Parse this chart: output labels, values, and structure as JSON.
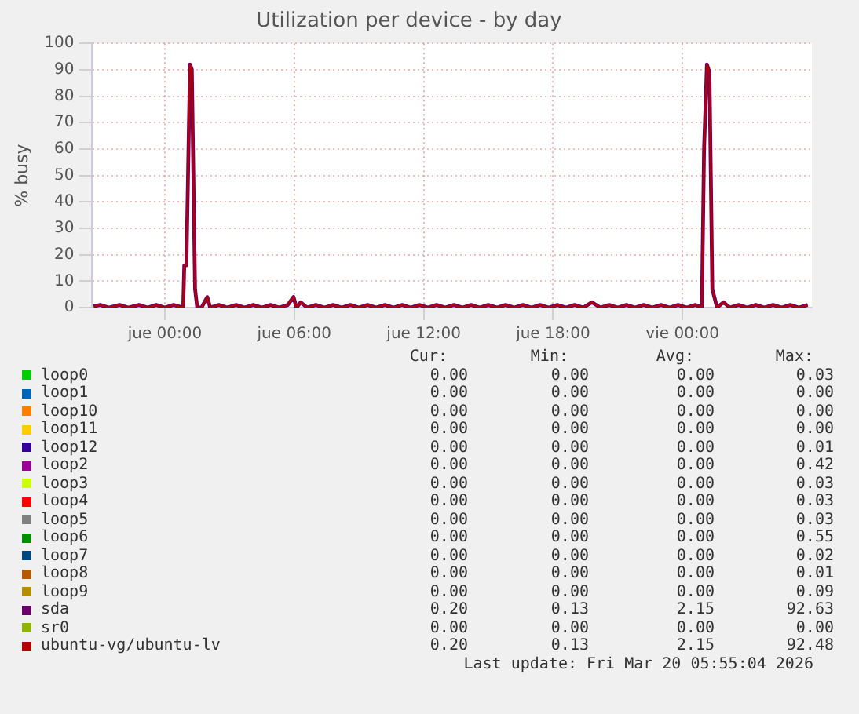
{
  "chart_data": {
    "type": "line",
    "title": "Utilization per device - by day",
    "ylabel": "% busy",
    "x": [
      "2026-03-18T20:42",
      "2026-03-18T21:00",
      "2026-03-18T21:24",
      "2026-03-18T21:54",
      "2026-03-18T22:18",
      "2026-03-18T22:48",
      "2026-03-18T23:12",
      "2026-03-18T23:36",
      "2026-03-19T00:00",
      "2026-03-19T00:24",
      "2026-03-19T00:51",
      "2026-03-19T00:54",
      "2026-03-19T01:00",
      "2026-03-19T01:10",
      "2026-03-19T01:15",
      "2026-03-19T01:24",
      "2026-03-19T01:30",
      "2026-03-19T01:42",
      "2026-03-19T01:58",
      "2026-03-19T02:06",
      "2026-03-19T02:30",
      "2026-03-19T02:54",
      "2026-03-19T03:18",
      "2026-03-19T03:42",
      "2026-03-19T04:06",
      "2026-03-19T04:30",
      "2026-03-19T04:54",
      "2026-03-19T05:18",
      "2026-03-19T05:42",
      "2026-03-19T05:58",
      "2026-03-19T06:06",
      "2026-03-19T06:18",
      "2026-03-19T06:36",
      "2026-03-19T07:00",
      "2026-03-19T07:24",
      "2026-03-19T07:48",
      "2026-03-19T08:12",
      "2026-03-19T08:36",
      "2026-03-19T09:00",
      "2026-03-19T09:24",
      "2026-03-19T09:48",
      "2026-03-19T10:12",
      "2026-03-19T10:36",
      "2026-03-19T11:00",
      "2026-03-19T11:24",
      "2026-03-19T11:48",
      "2026-03-19T12:12",
      "2026-03-19T12:36",
      "2026-03-19T13:00",
      "2026-03-19T13:24",
      "2026-03-19T13:48",
      "2026-03-19T14:12",
      "2026-03-19T14:36",
      "2026-03-19T15:00",
      "2026-03-19T15:24",
      "2026-03-19T15:48",
      "2026-03-19T16:12",
      "2026-03-19T16:36",
      "2026-03-19T17:00",
      "2026-03-19T17:24",
      "2026-03-19T17:48",
      "2026-03-19T18:12",
      "2026-03-19T18:36",
      "2026-03-19T19:00",
      "2026-03-19T19:24",
      "2026-03-19T19:48",
      "2026-03-19T20:12",
      "2026-03-19T20:36",
      "2026-03-19T21:00",
      "2026-03-19T21:24",
      "2026-03-19T21:48",
      "2026-03-19T22:12",
      "2026-03-19T22:36",
      "2026-03-19T23:00",
      "2026-03-19T23:24",
      "2026-03-19T23:48",
      "2026-03-20T00:12",
      "2026-03-20T00:36",
      "2026-03-20T00:54",
      "2026-03-20T01:00",
      "2026-03-20T01:08",
      "2026-03-20T01:15",
      "2026-03-20T01:23",
      "2026-03-20T01:36",
      "2026-03-20T01:54",
      "2026-03-20T02:12",
      "2026-03-20T02:36",
      "2026-03-20T03:00",
      "2026-03-20T03:24",
      "2026-03-20T03:48",
      "2026-03-20T04:12",
      "2026-03-20T04:36",
      "2026-03-20T05:00",
      "2026-03-20T05:24",
      "2026-03-20T05:48"
    ],
    "series": [
      {
        "name": "loop0",
        "color": "#00cc00",
        "values": [
          null,
          null,
          null,
          null,
          null,
          null,
          null,
          null,
          null,
          null,
          null,
          null,
          null,
          null,
          null,
          null,
          null,
          null,
          null,
          null,
          null,
          null,
          null,
          null,
          null,
          null,
          null,
          null,
          null,
          null,
          null,
          null,
          null,
          null,
          null,
          null,
          null,
          null,
          null,
          null,
          null,
          null,
          null,
          null,
          null,
          null,
          null,
          null,
          null,
          null,
          null,
          null,
          null,
          null,
          null,
          null,
          null,
          null,
          null,
          null,
          null,
          null,
          null,
          null,
          null,
          null,
          null,
          null,
          null,
          null,
          null,
          null,
          null,
          null,
          null,
          null,
          null,
          null,
          null,
          null,
          null,
          null,
          null,
          null,
          null,
          null,
          null,
          null,
          null,
          null,
          null,
          null,
          null,
          null,
          null
        ]
      },
      {
        "name": "loop1",
        "color": "#0066b3",
        "values": [
          null,
          null,
          null,
          null,
          null,
          null,
          null,
          null,
          null,
          null,
          null,
          null,
          null,
          null,
          null,
          null,
          null,
          null,
          null,
          null,
          null,
          null,
          null,
          null,
          null,
          null,
          null,
          null,
          null,
          null,
          null,
          null,
          null,
          null,
          null,
          null,
          null,
          null,
          null,
          null,
          null,
          null,
          null,
          null,
          null,
          null,
          null,
          null,
          null,
          null,
          null,
          null,
          null,
          null,
          null,
          null,
          null,
          null,
          null,
          null,
          null,
          null,
          null,
          null,
          null,
          null,
          null,
          null,
          null,
          null,
          null,
          null,
          null,
          null,
          null,
          null,
          null,
          null,
          null,
          null,
          null,
          null,
          null,
          null,
          null,
          null,
          null,
          null,
          null,
          null,
          null,
          null,
          null,
          null,
          null
        ]
      },
      {
        "name": "loop10",
        "color": "#ff8000",
        "values": [
          null,
          null,
          null,
          null,
          null,
          null,
          null,
          null,
          null,
          null,
          null,
          null,
          null,
          null,
          null,
          null,
          null,
          null,
          null,
          null,
          null,
          null,
          null,
          null,
          null,
          null,
          null,
          null,
          null,
          null,
          null,
          null,
          null,
          null,
          null,
          null,
          null,
          null,
          null,
          null,
          null,
          null,
          null,
          null,
          null,
          null,
          null,
          null,
          null,
          null,
          null,
          null,
          null,
          null,
          null,
          null,
          null,
          null,
          null,
          null,
          null,
          null,
          null,
          null,
          null,
          null,
          null,
          null,
          null,
          null,
          null,
          null,
          null,
          null,
          null,
          null,
          null,
          null,
          null,
          null,
          null,
          null,
          null,
          null,
          null,
          null,
          null,
          null,
          null,
          null,
          null,
          null,
          null,
          null,
          null
        ]
      },
      {
        "name": "loop11",
        "color": "#ffcc00",
        "values": [
          null,
          null,
          null,
          null,
          null,
          null,
          null,
          null,
          null,
          null,
          null,
          null,
          null,
          null,
          null,
          null,
          null,
          null,
          null,
          null,
          null,
          null,
          null,
          null,
          null,
          null,
          null,
          null,
          null,
          null,
          null,
          null,
          null,
          null,
          null,
          null,
          null,
          null,
          null,
          null,
          null,
          null,
          null,
          null,
          null,
          null,
          null,
          null,
          null,
          null,
          null,
          null,
          null,
          null,
          null,
          null,
          null,
          null,
          null,
          null,
          null,
          null,
          null,
          null,
          null,
          null,
          null,
          null,
          null,
          null,
          null,
          null,
          null,
          null,
          null,
          null,
          null,
          null,
          null,
          null,
          null,
          null,
          null,
          null,
          null,
          null,
          null,
          null,
          null,
          null,
          null,
          null,
          null,
          null,
          null
        ]
      },
      {
        "name": "loop12",
        "color": "#330099",
        "values": [
          null,
          null,
          null,
          null,
          null,
          null,
          null,
          null,
          null,
          null,
          null,
          null,
          null,
          null,
          null,
          null,
          null,
          null,
          null,
          null,
          null,
          null,
          null,
          null,
          null,
          null,
          null,
          null,
          null,
          null,
          null,
          null,
          null,
          null,
          null,
          null,
          null,
          null,
          null,
          null,
          null,
          null,
          null,
          null,
          null,
          null,
          null,
          null,
          null,
          null,
          null,
          null,
          null,
          null,
          null,
          null,
          null,
          null,
          null,
          null,
          null,
          null,
          null,
          null,
          null,
          null,
          null,
          null,
          null,
          null,
          null,
          null,
          null,
          null,
          null,
          null,
          null,
          null,
          null,
          null,
          null,
          null,
          null,
          null,
          null,
          null,
          null,
          null,
          null,
          null,
          null,
          null,
          null,
          null,
          null
        ]
      },
      {
        "name": "loop2",
        "color": "#990099",
        "values": [
          null,
          null,
          null,
          null,
          null,
          null,
          null,
          null,
          null,
          null,
          null,
          null,
          null,
          null,
          null,
          null,
          null,
          null,
          null,
          null,
          null,
          null,
          null,
          null,
          null,
          null,
          null,
          null,
          null,
          null,
          null,
          null,
          null,
          null,
          null,
          null,
          null,
          null,
          null,
          null,
          null,
          null,
          null,
          null,
          null,
          null,
          null,
          null,
          null,
          null,
          null,
          null,
          null,
          null,
          null,
          null,
          null,
          null,
          null,
          null,
          null,
          null,
          null,
          null,
          null,
          null,
          null,
          null,
          null,
          null,
          null,
          null,
          null,
          null,
          null,
          null,
          null,
          null,
          null,
          null,
          null,
          null,
          null,
          null,
          null,
          null,
          null,
          null,
          null,
          null,
          null,
          null,
          null,
          null,
          null
        ]
      },
      {
        "name": "loop3",
        "color": "#ccff00",
        "values": [
          null,
          null,
          null,
          null,
          null,
          null,
          null,
          null,
          null,
          null,
          null,
          null,
          null,
          null,
          null,
          null,
          null,
          null,
          null,
          null,
          null,
          null,
          null,
          null,
          null,
          null,
          null,
          null,
          null,
          null,
          null,
          null,
          null,
          null,
          null,
          null,
          null,
          null,
          null,
          null,
          null,
          null,
          null,
          null,
          null,
          null,
          null,
          null,
          null,
          null,
          null,
          null,
          null,
          null,
          null,
          null,
          null,
          null,
          null,
          null,
          null,
          null,
          null,
          null,
          null,
          null,
          null,
          null,
          null,
          null,
          null,
          null,
          null,
          null,
          null,
          null,
          null,
          null,
          null,
          null,
          null,
          null,
          null,
          null,
          null,
          null,
          null,
          null,
          null,
          null,
          null,
          null,
          null,
          null,
          null
        ]
      },
      {
        "name": "loop4",
        "color": "#ff0000",
        "values": [
          null,
          null,
          null,
          null,
          null,
          null,
          null,
          null,
          null,
          null,
          null,
          null,
          null,
          null,
          null,
          null,
          null,
          null,
          null,
          null,
          null,
          null,
          null,
          null,
          null,
          null,
          null,
          null,
          null,
          null,
          null,
          null,
          null,
          null,
          null,
          null,
          null,
          null,
          null,
          null,
          null,
          null,
          null,
          null,
          null,
          null,
          null,
          null,
          null,
          null,
          null,
          null,
          null,
          null,
          null,
          null,
          null,
          null,
          null,
          null,
          null,
          null,
          null,
          null,
          null,
          null,
          null,
          null,
          null,
          null,
          null,
          null,
          null,
          null,
          null,
          null,
          null,
          null,
          null,
          null,
          null,
          null,
          null,
          null,
          null,
          null,
          null,
          null,
          null,
          null,
          null,
          null,
          null,
          null,
          null
        ]
      },
      {
        "name": "loop5",
        "color": "#808080",
        "values": [
          null,
          null,
          null,
          null,
          null,
          null,
          null,
          null,
          null,
          null,
          null,
          null,
          null,
          null,
          null,
          null,
          null,
          null,
          null,
          null,
          null,
          null,
          null,
          null,
          null,
          null,
          null,
          null,
          null,
          null,
          null,
          null,
          null,
          null,
          null,
          null,
          null,
          null,
          null,
          null,
          null,
          null,
          null,
          null,
          null,
          null,
          null,
          null,
          null,
          null,
          null,
          null,
          null,
          null,
          null,
          null,
          null,
          null,
          null,
          null,
          null,
          null,
          null,
          null,
          null,
          null,
          null,
          null,
          null,
          null,
          null,
          null,
          null,
          null,
          null,
          null,
          null,
          null,
          null,
          null,
          null,
          null,
          null,
          null,
          null,
          null,
          null,
          null,
          null,
          null,
          null,
          null,
          null,
          null,
          null
        ]
      },
      {
        "name": "loop6",
        "color": "#008f00",
        "values": [
          null,
          null,
          null,
          null,
          null,
          null,
          null,
          null,
          null,
          null,
          null,
          null,
          null,
          null,
          null,
          null,
          null,
          null,
          null,
          null,
          null,
          null,
          null,
          null,
          null,
          null,
          null,
          null,
          null,
          null,
          null,
          null,
          null,
          null,
          null,
          null,
          null,
          null,
          null,
          null,
          null,
          null,
          null,
          null,
          null,
          null,
          null,
          null,
          null,
          null,
          null,
          null,
          null,
          null,
          null,
          null,
          null,
          null,
          null,
          null,
          null,
          null,
          null,
          null,
          null,
          null,
          null,
          null,
          null,
          null,
          null,
          null,
          null,
          null,
          null,
          null,
          null,
          null,
          null,
          null,
          null,
          null,
          null,
          null,
          null,
          null,
          null,
          null,
          null,
          null,
          null,
          null,
          null,
          null,
          null
        ]
      },
      {
        "name": "loop7",
        "color": "#00487d",
        "values": [
          null,
          null,
          null,
          null,
          null,
          null,
          null,
          null,
          null,
          null,
          null,
          null,
          null,
          null,
          null,
          null,
          null,
          null,
          null,
          null,
          null,
          null,
          null,
          null,
          null,
          null,
          null,
          null,
          null,
          null,
          null,
          null,
          null,
          null,
          null,
          null,
          null,
          null,
          null,
          null,
          null,
          null,
          null,
          null,
          null,
          null,
          null,
          null,
          null,
          null,
          null,
          null,
          null,
          null,
          null,
          null,
          null,
          null,
          null,
          null,
          null,
          null,
          null,
          null,
          null,
          null,
          null,
          null,
          null,
          null,
          null,
          null,
          null,
          null,
          null,
          null,
          null,
          null,
          null,
          null,
          null,
          null,
          null,
          null,
          null,
          null,
          null,
          null,
          null,
          null,
          null,
          null,
          null,
          null,
          null
        ]
      },
      {
        "name": "loop8",
        "color": "#b35a00",
        "values": [
          null,
          null,
          null,
          null,
          null,
          null,
          null,
          null,
          null,
          null,
          null,
          null,
          null,
          null,
          null,
          null,
          null,
          null,
          null,
          null,
          null,
          null,
          null,
          null,
          null,
          null,
          null,
          null,
          null,
          null,
          null,
          null,
          null,
          null,
          null,
          null,
          null,
          null,
          null,
          null,
          null,
          null,
          null,
          null,
          null,
          null,
          null,
          null,
          null,
          null,
          null,
          null,
          null,
          null,
          null,
          null,
          null,
          null,
          null,
          null,
          null,
          null,
          null,
          null,
          null,
          null,
          null,
          null,
          null,
          null,
          null,
          null,
          null,
          null,
          null,
          null,
          null,
          null,
          null,
          null,
          null,
          null,
          null,
          null,
          null,
          null,
          null,
          null,
          null,
          null,
          null,
          null,
          null,
          null,
          null
        ]
      },
      {
        "name": "loop9",
        "color": "#b38f00",
        "values": [
          null,
          null,
          null,
          null,
          null,
          null,
          null,
          null,
          null,
          null,
          null,
          null,
          null,
          null,
          null,
          null,
          null,
          null,
          null,
          null,
          null,
          null,
          null,
          null,
          null,
          null,
          null,
          null,
          null,
          null,
          null,
          null,
          null,
          null,
          null,
          null,
          null,
          null,
          null,
          null,
          null,
          null,
          null,
          null,
          null,
          null,
          null,
          null,
          null,
          null,
          null,
          null,
          null,
          null,
          null,
          null,
          null,
          null,
          null,
          null,
          null,
          null,
          null,
          null,
          null,
          null,
          null,
          null,
          null,
          null,
          null,
          null,
          null,
          null,
          null,
          null,
          null,
          null,
          null,
          null,
          null,
          null,
          null,
          null,
          null,
          null,
          null,
          null,
          null,
          null,
          null,
          null,
          null,
          null,
          null
        ]
      },
      {
        "name": "sda",
        "color": "#6b006b",
        "values": [
          0.5,
          1,
          0,
          1,
          0,
          1,
          0,
          1,
          0,
          1,
          0,
          16,
          16,
          92,
          90,
          7,
          0,
          0,
          4,
          0,
          1,
          0,
          1,
          0,
          1,
          0,
          1,
          0,
          1,
          4,
          0,
          2,
          0,
          1,
          0,
          1,
          0,
          1,
          0,
          1,
          0,
          1,
          0,
          1,
          0,
          1,
          0,
          1,
          0,
          1,
          0,
          1,
          0,
          1,
          0,
          1,
          0,
          1,
          0,
          1,
          0,
          1,
          0,
          1,
          0,
          2,
          0,
          1,
          0,
          1,
          0,
          1,
          0,
          1,
          0,
          1,
          0,
          1,
          0,
          60,
          92,
          89,
          7,
          0,
          2,
          0,
          1,
          0,
          1,
          0,
          1,
          0,
          1,
          0,
          1
        ]
      },
      {
        "name": "sr0",
        "color": "#8fb300",
        "values": [
          null,
          null,
          null,
          null,
          null,
          null,
          null,
          null,
          null,
          null,
          null,
          null,
          null,
          null,
          null,
          null,
          null,
          null,
          null,
          null,
          null,
          null,
          null,
          null,
          null,
          null,
          null,
          null,
          null,
          null,
          null,
          null,
          null,
          null,
          null,
          null,
          null,
          null,
          null,
          null,
          null,
          null,
          null,
          null,
          null,
          null,
          null,
          null,
          null,
          null,
          null,
          null,
          null,
          null,
          null,
          null,
          null,
          null,
          null,
          null,
          null,
          null,
          null,
          null,
          null,
          null,
          null,
          null,
          null,
          null,
          null,
          null,
          null,
          null,
          null,
          null,
          null,
          null,
          null,
          null,
          null,
          null,
          null,
          null,
          null,
          null,
          null,
          null,
          null,
          null,
          null,
          null,
          null,
          null,
          null
        ]
      },
      {
        "name": "ubuntu-vg/ubuntu-lv",
        "color": "#b30000",
        "values": [
          0.5,
          1,
          0,
          1,
          0,
          1,
          0,
          1,
          0,
          1,
          0,
          16,
          16,
          92,
          90,
          7,
          0,
          0,
          4,
          0,
          1,
          0,
          1,
          0,
          1,
          0,
          1,
          0,
          1,
          4,
          0,
          2,
          0,
          1,
          0,
          1,
          0,
          1,
          0,
          1,
          0,
          1,
          0,
          1,
          0,
          1,
          0,
          1,
          0,
          1,
          0,
          1,
          0,
          1,
          0,
          1,
          0,
          1,
          0,
          1,
          0,
          1,
          0,
          1,
          0,
          2,
          0,
          1,
          0,
          1,
          0,
          1,
          0,
          1,
          0,
          1,
          0,
          1,
          0,
          60,
          92,
          89,
          7,
          0,
          2,
          0,
          1,
          0,
          1,
          0,
          1,
          0,
          1,
          0,
          1
        ]
      }
    ],
    "xlim": [
      "2026-03-18T20:36",
      "2026-03-20T06:00"
    ],
    "xticks": [
      {
        "value": "2026-03-19T00:00",
        "label": "jue 00:00"
      },
      {
        "value": "2026-03-19T06:00",
        "label": "jue 06:00"
      },
      {
        "value": "2026-03-19T12:00",
        "label": "jue 12:00"
      },
      {
        "value": "2026-03-19T18:00",
        "label": "jue 18:00"
      },
      {
        "value": "2026-03-20T00:00",
        "label": "vie 00:00"
      }
    ],
    "ylim": [
      0,
      100
    ],
    "yticks": [
      0,
      10,
      20,
      30,
      40,
      50,
      60,
      70,
      80,
      90,
      100
    ],
    "grid": true,
    "legend": "bottom",
    "marker": "none",
    "line_style": "solid",
    "annotations": [
      "Cur:",
      "Min:",
      "Avg:",
      "Max:",
      "0.00",
      "0.00",
      "0.00",
      "0.03",
      "0.00",
      "0.00",
      "0.00",
      "0.00",
      "0.00",
      "0.00",
      "0.00",
      "0.00",
      "0.00",
      "0.00",
      "0.00",
      "0.00",
      "0.00",
      "0.00",
      "0.00",
      "0.01",
      "0.00",
      "0.00",
      "0.00",
      "0.42",
      "0.00",
      "0.00",
      "0.00",
      "0.03",
      "0.00",
      "0.00",
      "0.00",
      "0.03",
      "0.00",
      "0.00",
      "0.00",
      "0.03",
      "0.00",
      "0.00",
      "0.00",
      "0.55",
      "0.00",
      "0.00",
      "0.00",
      "0.02",
      "0.00",
      "0.00",
      "0.00",
      "0.01",
      "0.00",
      "0.00",
      "0.00",
      "0.09",
      "0.20",
      "0.13",
      "2.15",
      "92.63",
      "0.00",
      "0.00",
      "0.00",
      "0.00",
      "0.20",
      "0.13",
      "2.15",
      "92.48",
      "Last update: Fri Mar 20 05:55:04 2026"
    ]
  }
}
